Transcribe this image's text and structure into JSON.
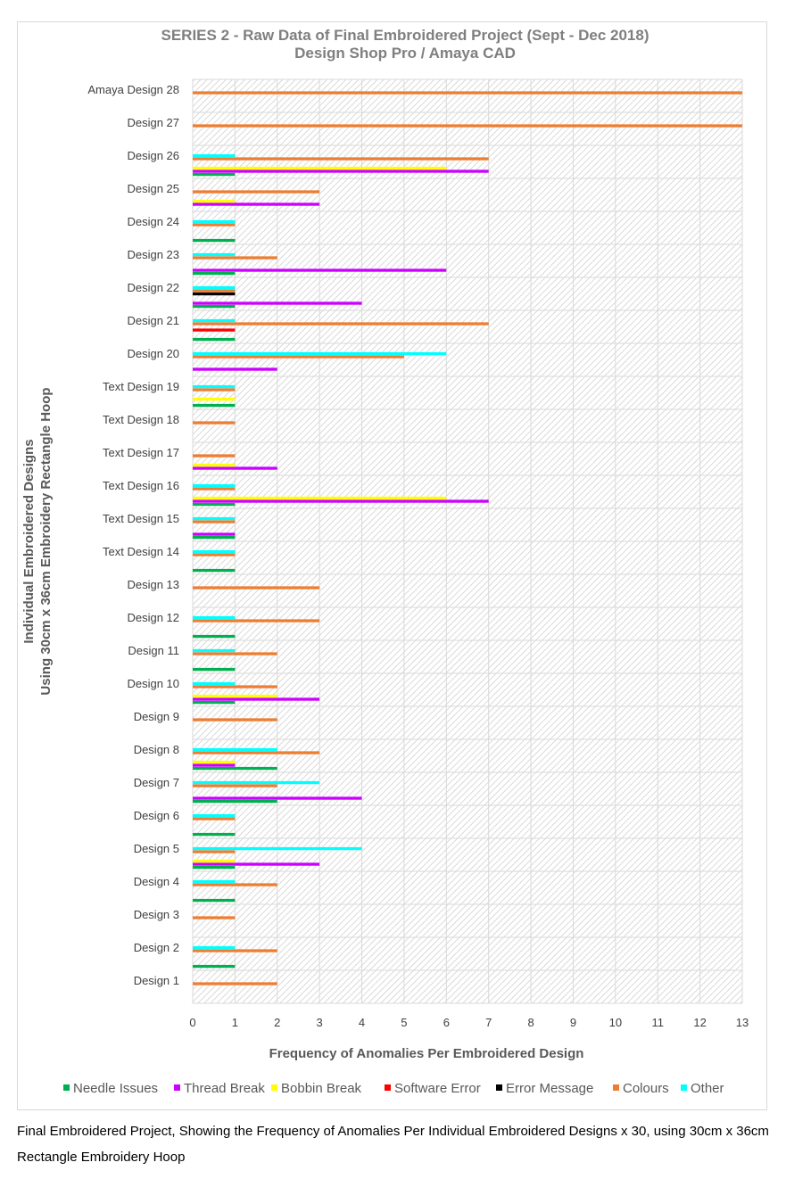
{
  "caption": "Final Embroidered Project, Showing the Frequency of Anomalies Per Individual Embroidered Designs x 30, using 30cm x 36cm Rectangle Embroidery Hoop",
  "chart_data": {
    "type": "bar",
    "orientation": "horizontal",
    "title": "SERIES 2 - Raw Data of Final Embroidered Project (Sept - Dec 2018)",
    "subtitle": "Design Shop Pro / Amaya CAD",
    "xlabel": "Frequency of Anomalies Per Embroidered Design",
    "ylabel_line1": "Individual Embroidered Designs",
    "ylabel_line2": "Using 30cm x 36cm Embroidery Rectangle Hoop",
    "xlim": [
      0,
      13
    ],
    "xticks": [
      "0",
      "1",
      "2",
      "3",
      "4",
      "5",
      "6",
      "7",
      "8",
      "9",
      "10",
      "11",
      "12",
      "13"
    ],
    "legend_position": "bottom",
    "categories": [
      "Design 1",
      "Design 2",
      "Design 3",
      "Design 4",
      "Design 5",
      "Design 6",
      "Design 7",
      "Design 8",
      "Design 9",
      "Design 10",
      "Design 11",
      "Design 12",
      "Design 13",
      "Text Design 14",
      "Text Design 15",
      "Text Design 16",
      "Text Design 17",
      "Text Design 18",
      "Text Design 19",
      "Design 20",
      "Design 21",
      "Design 22",
      "Design 23",
      "Design 24",
      "Design 25",
      "Design 26",
      "Design 27",
      "Amaya Design 28"
    ],
    "series": [
      {
        "name": "Needle Issues",
        "color": "#00b050",
        "values": [
          0,
          1,
          0,
          1,
          1,
          1,
          2,
          2,
          0,
          1,
          1,
          1,
          0,
          1,
          1,
          1,
          0,
          0,
          1,
          0,
          1,
          1,
          1,
          1,
          0,
          1,
          0,
          0
        ]
      },
      {
        "name": "Thread Break",
        "color": "#cc00ff",
        "values": [
          0,
          0,
          0,
          0,
          3,
          0,
          4,
          1,
          0,
          3,
          0,
          0,
          0,
          0,
          1,
          7,
          2,
          0,
          0,
          2,
          0,
          4,
          6,
          0,
          3,
          7,
          0,
          0
        ]
      },
      {
        "name": "Bobbin Break",
        "color": "#ffff00",
        "values": [
          0,
          0,
          0,
          0,
          1,
          0,
          0,
          1,
          0,
          2,
          0,
          0,
          0,
          0,
          0,
          6,
          1,
          0,
          1,
          0,
          0,
          0,
          0,
          0,
          1,
          6,
          0,
          0
        ]
      },
      {
        "name": "Software Error",
        "color": "#ff0000",
        "values": [
          0,
          0,
          0,
          0,
          0,
          0,
          0,
          0,
          0,
          0,
          0,
          0,
          0,
          0,
          0,
          0,
          0,
          0,
          0,
          0,
          1,
          0,
          0,
          0,
          0,
          0,
          0,
          0
        ]
      },
      {
        "name": "Error Message",
        "color": "#000000",
        "values": [
          0,
          0,
          0,
          0,
          0,
          0,
          0,
          0,
          0,
          0,
          0,
          0,
          0,
          0,
          0,
          0,
          0,
          0,
          0,
          0,
          0,
          1,
          0,
          0,
          0,
          0,
          0,
          0
        ]
      },
      {
        "name": "Colours",
        "color": "#ed7d31",
        "values": [
          2,
          2,
          1,
          2,
          1,
          1,
          2,
          3,
          2,
          2,
          2,
          3,
          3,
          1,
          1,
          1,
          1,
          1,
          1,
          5,
          7,
          1,
          2,
          1,
          3,
          7,
          13,
          13
        ]
      },
      {
        "name": "Other",
        "color": "#00ffff",
        "values": [
          0,
          1,
          0,
          1,
          4,
          1,
          3,
          2,
          0,
          1,
          1,
          1,
          0,
          1,
          1,
          1,
          0,
          0,
          1,
          6,
          1,
          1,
          1,
          1,
          0,
          1,
          0,
          0
        ]
      }
    ]
  }
}
